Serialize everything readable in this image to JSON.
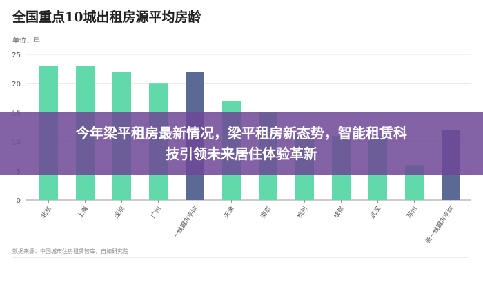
{
  "chart_data": {
    "type": "bar",
    "title": "全国重点10城出租房源平均房龄",
    "unit_label": "单位：年",
    "categories": [
      "北京",
      "上海",
      "深圳",
      "广州",
      "一线城市平均",
      "天津",
      "南京",
      "杭州",
      "成都",
      "武汉",
      "苏州",
      "新一线城市平均"
    ],
    "values": [
      23,
      23,
      22,
      20,
      22,
      17,
      15,
      11,
      11,
      11,
      6,
      12
    ],
    "highlight": [
      false,
      false,
      false,
      false,
      true,
      false,
      false,
      false,
      false,
      false,
      false,
      true
    ],
    "ylim": [
      0,
      25
    ],
    "yticks": [
      0,
      5,
      10,
      15,
      20,
      25
    ],
    "grid": true,
    "colors": {
      "city": "#62d9aa",
      "average": "#5a6a95"
    },
    "source": "数据来源：中国城市住房租赁智库，自如研究院"
  },
  "banner": {
    "line1": "今年梁平租房最新情况，梁平租房新态势，智能租赁科",
    "line2": "技引领未来居住体验革新"
  }
}
